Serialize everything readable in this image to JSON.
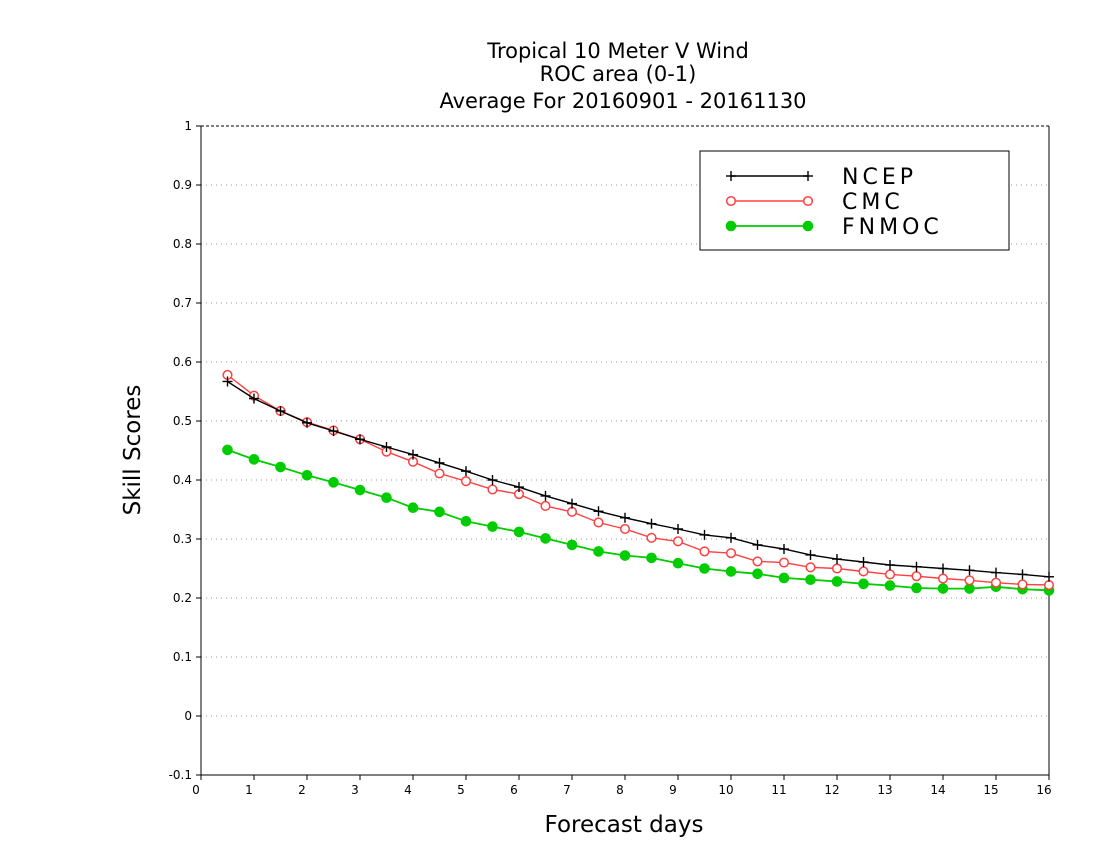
{
  "chart_data": {
    "type": "line",
    "title_lines": [
      "Tropical 10 Meter V Wind",
      "ROC area (0-1)",
      "Average For 20160901 - 20161130"
    ],
    "xlabel": "Forecast days",
    "ylabel": "Skill Scores",
    "xlim": [
      0,
      16
    ],
    "ylim": [
      -0.1,
      1
    ],
    "x_ticks": [
      0,
      1,
      2,
      3,
      4,
      5,
      6,
      7,
      8,
      9,
      10,
      11,
      12,
      13,
      14,
      15,
      16
    ],
    "x_tick_labels": [
      "0",
      "1",
      "2",
      "3",
      "4",
      "5",
      "6",
      "7",
      "8",
      "9",
      "10",
      "11",
      "12",
      "13",
      "14",
      "15",
      "16"
    ],
    "y_ticks": [
      -0.1,
      0,
      0.1,
      0.2,
      0.3,
      0.4,
      0.5,
      0.6,
      0.7,
      0.8,
      0.9,
      1
    ],
    "y_tick_labels": [
      "-0.1",
      "0",
      "0.1",
      "0.2",
      "0.3",
      "0.4",
      "0.5",
      "0.6",
      "0.7",
      "0.8",
      "0.9",
      "1"
    ],
    "grid": "horizontal-dotted",
    "legend_position": "top-right",
    "x": [
      0.5,
      1,
      1.5,
      2,
      2.5,
      3,
      3.5,
      4,
      4.5,
      5,
      5.5,
      6,
      6.5,
      7,
      7.5,
      8,
      8.5,
      9,
      9.5,
      10,
      10.5,
      11,
      11.5,
      12,
      12.5,
      13,
      13.5,
      14,
      14.5,
      15,
      15.5,
      16
    ],
    "series": [
      {
        "name": "NCEP",
        "color": "#000000",
        "marker": "plus",
        "values": [
          0.567,
          0.538,
          0.517,
          0.497,
          0.483,
          0.469,
          0.456,
          0.443,
          0.429,
          0.415,
          0.4,
          0.388,
          0.373,
          0.36,
          0.347,
          0.336,
          0.326,
          0.317,
          0.307,
          0.302,
          0.29,
          0.283,
          0.273,
          0.266,
          0.261,
          0.256,
          0.253,
          0.25,
          0.247,
          0.243,
          0.24,
          0.236
        ]
      },
      {
        "name": "CMC",
        "color": "#ff4040",
        "marker": "open-circle",
        "values": [
          0.578,
          0.543,
          0.517,
          0.498,
          0.484,
          0.469,
          0.448,
          0.431,
          0.411,
          0.398,
          0.384,
          0.376,
          0.356,
          0.346,
          0.328,
          0.317,
          0.302,
          0.296,
          0.279,
          0.276,
          0.262,
          0.26,
          0.252,
          0.25,
          0.245,
          0.24,
          0.237,
          0.233,
          0.23,
          0.226,
          0.223,
          0.222
        ]
      },
      {
        "name": "FNMOC",
        "color": "#00cc00",
        "marker": "filled-circle",
        "values": [
          0.451,
          0.435,
          0.422,
          0.408,
          0.396,
          0.383,
          0.37,
          0.353,
          0.346,
          0.33,
          0.321,
          0.312,
          0.301,
          0.29,
          0.279,
          0.272,
          0.268,
          0.259,
          0.25,
          0.245,
          0.241,
          0.234,
          0.231,
          0.228,
          0.224,
          0.221,
          0.217,
          0.216,
          0.216,
          0.219,
          0.215,
          0.213
        ]
      }
    ]
  }
}
